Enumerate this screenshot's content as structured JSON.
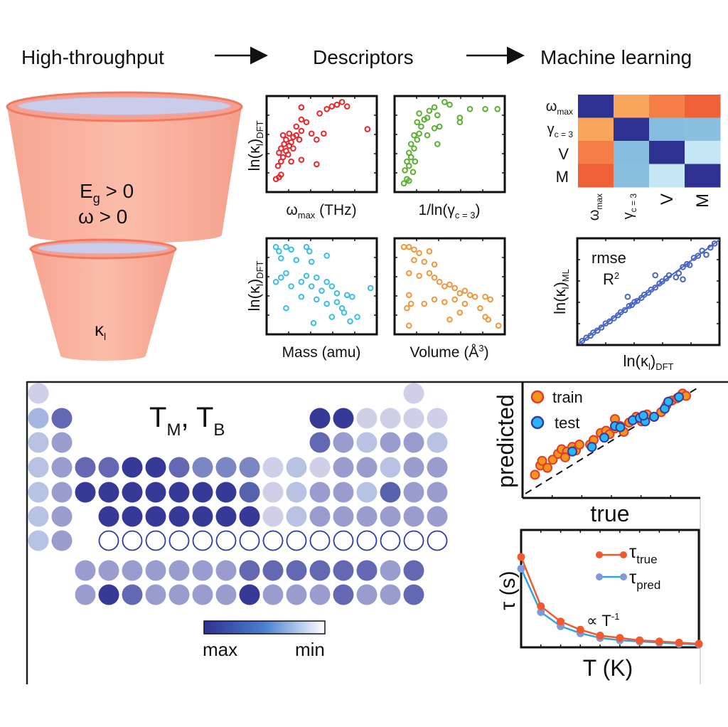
{
  "header": {
    "step1": "High-throughput",
    "step2": "Descriptors",
    "step3": "Machine learning"
  },
  "funnels": {
    "top": {
      "line1_main": "E",
      "line1_sub": "g",
      "line1_rest": " > 0",
      "line2": "ω > 0"
    },
    "bottom": {
      "main": "κ",
      "sub": "l"
    },
    "colors": {
      "body": "#f8b3a2",
      "rim": "#f07a60",
      "inner": "#c9cdea"
    }
  },
  "descriptors": {
    "ylabel": {
      "main": "ln(κ",
      "sub1": "l",
      "mid": ")",
      "sub2": "DFT"
    },
    "panels": [
      {
        "xlabel_main": "ω",
        "xlabel_sub": "max",
        "xlabel_rest": " (THz)",
        "color": "#e8262b",
        "points": [
          [
            0.05,
            0.1
          ],
          [
            0.08,
            0.12
          ],
          [
            0.1,
            0.15
          ],
          [
            0.07,
            0.25
          ],
          [
            0.1,
            0.3
          ],
          [
            0.12,
            0.35
          ],
          [
            0.08,
            0.4
          ],
          [
            0.15,
            0.42
          ],
          [
            0.1,
            0.45
          ],
          [
            0.13,
            0.5
          ],
          [
            0.18,
            0.48
          ],
          [
            0.2,
            0.52
          ],
          [
            0.15,
            0.55
          ],
          [
            0.22,
            0.58
          ],
          [
            0.25,
            0.6
          ],
          [
            0.18,
            0.62
          ],
          [
            0.28,
            0.55
          ],
          [
            0.3,
            0.65
          ],
          [
            0.25,
            0.7
          ],
          [
            0.3,
            0.78
          ],
          [
            0.35,
            0.75
          ],
          [
            0.4,
            0.62
          ],
          [
            0.45,
            0.55
          ],
          [
            0.52,
            0.62
          ],
          [
            0.48,
            0.85
          ],
          [
            0.55,
            0.9
          ],
          [
            0.6,
            0.93
          ],
          [
            0.65,
            0.95
          ],
          [
            0.7,
            0.98
          ],
          [
            0.75,
            0.93
          ],
          [
            0.3,
            0.92
          ],
          [
            0.95,
            0.67
          ],
          [
            0.45,
            0.27
          ],
          [
            0.3,
            0.32
          ],
          [
            0.2,
            0.3
          ],
          [
            0.12,
            0.6
          ],
          [
            0.17,
            0.38
          ],
          [
            0.22,
            0.45
          ]
        ]
      },
      {
        "xlabel_main": "1/ln(γ",
        "xlabel_sub": "c = 3",
        "xlabel_rest": ")",
        "color": "#5ab031",
        "points": [
          [
            0.05,
            0.05
          ],
          [
            0.08,
            0.1
          ],
          [
            0.06,
            0.2
          ],
          [
            0.1,
            0.25
          ],
          [
            0.08,
            0.3
          ],
          [
            0.12,
            0.35
          ],
          [
            0.1,
            0.4
          ],
          [
            0.15,
            0.45
          ],
          [
            0.12,
            0.5
          ],
          [
            0.18,
            0.55
          ],
          [
            0.15,
            0.6
          ],
          [
            0.2,
            0.62
          ],
          [
            0.22,
            0.7
          ],
          [
            0.18,
            0.75
          ],
          [
            0.25,
            0.78
          ],
          [
            0.2,
            0.85
          ],
          [
            0.3,
            0.88
          ],
          [
            0.28,
            0.8
          ],
          [
            0.35,
            0.92
          ],
          [
            0.38,
            0.83
          ],
          [
            0.35,
            0.68
          ],
          [
            0.4,
            0.7
          ],
          [
            0.38,
            0.5
          ],
          [
            0.5,
            0.95
          ],
          [
            0.6,
            0.75
          ],
          [
            0.6,
            0.8
          ],
          [
            0.7,
            0.9
          ],
          [
            0.85,
            0.9
          ],
          [
            0.97,
            0.9
          ],
          [
            0.45,
            0.98
          ],
          [
            0.28,
            0.6
          ],
          [
            0.14,
            0.18
          ],
          [
            0.1,
            0.08
          ],
          [
            0.16,
            0.3
          ]
        ]
      },
      {
        "xlabel_main": "Mass (amu)",
        "xlabel_sub": "",
        "xlabel_rest": "",
        "color": "#3cbde6",
        "points": [
          [
            0.05,
            0.95
          ],
          [
            0.08,
            0.9
          ],
          [
            0.15,
            0.95
          ],
          [
            0.2,
            0.92
          ],
          [
            0.35,
            0.95
          ],
          [
            0.38,
            0.9
          ],
          [
            0.1,
            0.82
          ],
          [
            0.25,
            0.8
          ],
          [
            0.4,
            0.78
          ],
          [
            0.55,
            0.85
          ],
          [
            0.05,
            0.55
          ],
          [
            0.1,
            0.6
          ],
          [
            0.15,
            0.65
          ],
          [
            0.2,
            0.5
          ],
          [
            0.3,
            0.55
          ],
          [
            0.35,
            0.62
          ],
          [
            0.4,
            0.5
          ],
          [
            0.45,
            0.6
          ],
          [
            0.5,
            0.45
          ],
          [
            0.55,
            0.55
          ],
          [
            0.6,
            0.5
          ],
          [
            0.65,
            0.42
          ],
          [
            0.3,
            0.38
          ],
          [
            0.45,
            0.35
          ],
          [
            0.55,
            0.3
          ],
          [
            0.65,
            0.32
          ],
          [
            0.7,
            0.25
          ],
          [
            0.75,
            0.4
          ],
          [
            0.8,
            0.38
          ],
          [
            0.85,
            0.15
          ],
          [
            0.78,
            0.1
          ],
          [
            0.42,
            0.08
          ],
          [
            0.6,
            0.15
          ],
          [
            0.15,
            0.25
          ],
          [
            0.98,
            0.48
          ],
          [
            0.72,
            0.2
          ]
        ]
      },
      {
        "xlabel_main": "Volume (Å",
        "xlabel_sub": "",
        "xlabel_sup": "3",
        "xlabel_rest": ")",
        "color": "#f0963c",
        "points": [
          [
            0.05,
            0.95
          ],
          [
            0.1,
            0.95
          ],
          [
            0.15,
            0.92
          ],
          [
            0.2,
            0.88
          ],
          [
            0.3,
            0.9
          ],
          [
            0.15,
            0.8
          ],
          [
            0.25,
            0.78
          ],
          [
            0.35,
            0.75
          ],
          [
            0.1,
            0.65
          ],
          [
            0.2,
            0.62
          ],
          [
            0.3,
            0.65
          ],
          [
            0.35,
            0.6
          ],
          [
            0.4,
            0.55
          ],
          [
            0.45,
            0.5
          ],
          [
            0.5,
            0.52
          ],
          [
            0.55,
            0.48
          ],
          [
            0.6,
            0.42
          ],
          [
            0.65,
            0.45
          ],
          [
            0.7,
            0.4
          ],
          [
            0.75,
            0.38
          ],
          [
            0.85,
            0.38
          ],
          [
            0.9,
            0.35
          ],
          [
            0.1,
            0.4
          ],
          [
            0.08,
            0.25
          ],
          [
            0.12,
            0.3
          ],
          [
            0.25,
            0.3
          ],
          [
            0.35,
            0.35
          ],
          [
            0.45,
            0.32
          ],
          [
            0.55,
            0.35
          ],
          [
            0.65,
            0.3
          ],
          [
            0.6,
            0.2
          ],
          [
            0.8,
            0.25
          ],
          [
            0.85,
            0.15
          ],
          [
            0.88,
            0.12
          ],
          [
            0.5,
            0.12
          ],
          [
            0.1,
            0.05
          ],
          [
            0.98,
            0.05
          ]
        ]
      }
    ]
  },
  "correlation": {
    "labels": [
      {
        "main": "ω",
        "sub": "max"
      },
      {
        "main": "γ",
        "sub": "c = 3"
      },
      {
        "main": "V",
        "sub": ""
      },
      {
        "main": "M",
        "sub": ""
      }
    ],
    "colors": [
      [
        "#2e3192",
        "#f8a65b",
        "#f57e47",
        "#ef6039"
      ],
      [
        "#f8a65b",
        "#2e3192",
        "#86bddf",
        "#8bbfe0"
      ],
      [
        "#f57e47",
        "#86bddf",
        "#2e3192",
        "#c5e6f4"
      ],
      [
        "#ef6039",
        "#8bbfe0",
        "#c5e6f4",
        "#2e3192"
      ]
    ]
  },
  "parity": {
    "ylabel": {
      "main": "ln(κ",
      "sub1": "l",
      "mid": ")",
      "sub2": "ML"
    },
    "xlabel": {
      "main": "ln(κ",
      "sub1": "l",
      "mid": ")",
      "sub2": "DFT"
    },
    "annotation1": "rmse",
    "annotation2_main": "R",
    "annotation2_sup": "2",
    "color": "#4a66c4",
    "points": [
      [
        0.02,
        0.02
      ],
      [
        0.05,
        0.05
      ],
      [
        0.08,
        0.07
      ],
      [
        0.1,
        0.1
      ],
      [
        0.13,
        0.12
      ],
      [
        0.16,
        0.15
      ],
      [
        0.19,
        0.19
      ],
      [
        0.22,
        0.21
      ],
      [
        0.25,
        0.24
      ],
      [
        0.28,
        0.27
      ],
      [
        0.3,
        0.3
      ],
      [
        0.33,
        0.32
      ],
      [
        0.36,
        0.36
      ],
      [
        0.38,
        0.37
      ],
      [
        0.4,
        0.4
      ],
      [
        0.42,
        0.41
      ],
      [
        0.45,
        0.44
      ],
      [
        0.47,
        0.47
      ],
      [
        0.5,
        0.49
      ],
      [
        0.52,
        0.52
      ],
      [
        0.55,
        0.54
      ],
      [
        0.58,
        0.58
      ],
      [
        0.6,
        0.6
      ],
      [
        0.63,
        0.63
      ],
      [
        0.65,
        0.66
      ],
      [
        0.7,
        0.64
      ],
      [
        0.72,
        0.68
      ],
      [
        0.75,
        0.74
      ],
      [
        0.78,
        0.77
      ],
      [
        0.8,
        0.76
      ],
      [
        0.83,
        0.83
      ],
      [
        0.86,
        0.85
      ],
      [
        0.89,
        0.9
      ],
      [
        0.92,
        0.86
      ],
      [
        0.95,
        0.93
      ],
      [
        0.98,
        0.97
      ],
      [
        0.35,
        0.45
      ],
      [
        0.55,
        0.66
      ],
      [
        0.75,
        0.62
      ]
    ]
  },
  "periodic_table": {
    "title_main1": "T",
    "title_sub1": "M",
    "title_sep": ", ",
    "title_main2": "T",
    "title_sub2": "B",
    "palette": [
      "#cfcfe8",
      "#b8c2e2",
      "#9a9ccd",
      "#7b86c2",
      "#6468b2",
      "#5562ae",
      "#363996"
    ],
    "special_colors": {
      "Li": "#a2b6df",
      "outline": "#2e3da0"
    },
    "rows": [
      [
        0,
        null,
        null,
        null,
        null,
        null,
        null,
        null,
        null,
        null,
        null,
        null,
        null,
        null,
        null,
        null,
        0,
        null
      ],
      [
        "Li",
        4,
        null,
        null,
        null,
        null,
        null,
        null,
        null,
        null,
        null,
        null,
        6,
        6,
        0,
        0,
        0,
        0
      ],
      [
        1,
        2,
        null,
        null,
        null,
        null,
        null,
        null,
        null,
        null,
        null,
        null,
        4,
        2,
        1,
        2,
        2,
        1
      ],
      [
        1,
        2,
        4,
        4,
        6,
        6,
        4,
        3,
        3,
        3,
        0,
        1,
        0,
        2,
        2,
        1,
        2,
        2
      ],
      [
        1,
        2,
        6,
        6,
        6,
        6,
        6,
        6,
        6,
        5,
        0,
        1,
        2,
        2,
        1,
        5,
        2,
        2
      ],
      [
        1,
        2,
        null,
        6,
        6,
        6,
        6,
        6,
        6,
        6,
        0,
        1,
        2,
        2,
        2,
        2,
        2,
        2
      ],
      [
        1,
        2,
        null,
        "o",
        "o",
        "o",
        "o",
        "o",
        "o",
        "o",
        "o",
        "o",
        "o",
        "o",
        "o",
        "o",
        "o",
        "o"
      ],
      [
        null,
        null,
        2,
        2,
        2,
        2,
        2,
        2,
        2,
        4,
        4,
        4,
        4,
        4,
        4,
        2,
        4,
        null
      ],
      [
        null,
        null,
        2,
        6,
        4,
        2,
        2,
        2,
        2,
        6,
        2,
        2,
        2,
        4,
        2,
        2,
        4,
        null
      ]
    ],
    "colorbar": {
      "left_label": "max",
      "right_label": "min",
      "colors": [
        "#2e3192",
        "#4b7fd0",
        "#ffffff"
      ]
    }
  },
  "chart_data": [
    {
      "type": "scatter",
      "xlabel": "true",
      "ylabel": "predicted",
      "legend_placement": "top-left",
      "series": [
        {
          "name": "train",
          "fill": "#f7941d",
          "stroke": "#e03c2a",
          "points": [
            [
              0.07,
              0.2
            ],
            [
              0.1,
              0.28
            ],
            [
              0.11,
              0.32
            ],
            [
              0.14,
              0.26
            ],
            [
              0.17,
              0.33
            ],
            [
              0.2,
              0.38
            ],
            [
              0.22,
              0.42
            ],
            [
              0.25,
              0.4
            ],
            [
              0.28,
              0.44
            ],
            [
              0.3,
              0.41
            ],
            [
              0.32,
              0.46
            ],
            [
              0.38,
              0.46
            ],
            [
              0.4,
              0.5
            ],
            [
              0.44,
              0.56
            ],
            [
              0.47,
              0.58
            ],
            [
              0.49,
              0.55
            ],
            [
              0.52,
              0.6
            ],
            [
              0.55,
              0.62
            ],
            [
              0.57,
              0.57
            ],
            [
              0.6,
              0.65
            ],
            [
              0.64,
              0.7
            ],
            [
              0.67,
              0.66
            ],
            [
              0.7,
              0.72
            ],
            [
              0.74,
              0.7
            ],
            [
              0.78,
              0.74
            ],
            [
              0.81,
              0.8
            ],
            [
              0.84,
              0.84
            ],
            [
              0.87,
              0.86
            ],
            [
              0.9,
              0.9
            ],
            [
              0.92,
              0.88
            ],
            [
              0.52,
              0.68
            ],
            [
              0.24,
              0.35
            ]
          ]
        },
        {
          "name": "test",
          "fill": "#29b6f6",
          "stroke": "#3a3aa0",
          "points": [
            [
              0.28,
              0.4
            ],
            [
              0.39,
              0.44
            ],
            [
              0.46,
              0.52
            ],
            [
              0.52,
              0.62
            ],
            [
              0.55,
              0.61
            ],
            [
              0.62,
              0.67
            ],
            [
              0.66,
              0.69
            ],
            [
              0.69,
              0.66
            ],
            [
              0.74,
              0.7
            ],
            [
              0.8,
              0.77
            ],
            [
              0.82,
              0.83
            ],
            [
              0.88,
              0.87
            ],
            [
              0.68,
              0.71
            ]
          ]
        }
      ],
      "reference_line": "y = x (dashed)"
    },
    {
      "type": "line",
      "xlabel": "T (K)",
      "ylabel": "τ (s)",
      "annotation_main": "∝ T",
      "annotation_sup": "-1",
      "legend_placement": "top-right",
      "x": [
        1,
        2,
        3,
        4,
        5,
        6,
        7,
        8,
        9,
        10
      ],
      "ylim": [
        0,
        1
      ],
      "series": [
        {
          "name_main": "τ",
          "name_sub": "true",
          "color": "#f05a2e",
          "values": [
            0.77,
            0.35,
            0.22,
            0.15,
            0.1,
            0.08,
            0.06,
            0.05,
            0.04,
            0.03
          ]
        },
        {
          "name_main": "τ",
          "name_sub": "pred",
          "color": "#2ea6df",
          "marker": "#7f9ad8",
          "values": [
            0.67,
            0.3,
            0.18,
            0.12,
            0.08,
            0.06,
            0.05,
            0.04,
            0.03,
            0.025
          ]
        }
      ]
    }
  ]
}
